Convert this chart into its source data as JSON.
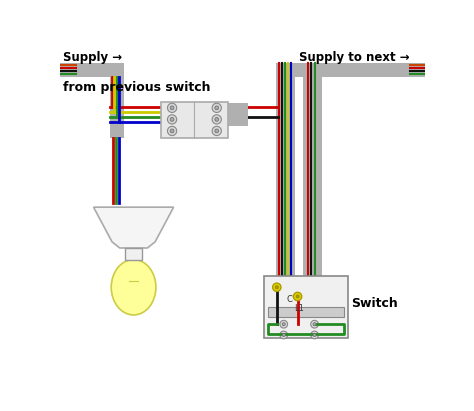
{
  "bg_color": "#ffffff",
  "supply_label": "Supply →",
  "supply_to_next_label": "Supply to next →",
  "from_prev_label": "from previous switch",
  "switch_label": "Switch",
  "cable_gray": "#b0b0b0",
  "wire_red": "#cc0000",
  "wire_black": "#111111",
  "wire_green": "#228B22",
  "wire_yellow_green": "#cccc00",
  "wire_blue": "#0000cc",
  "wire_brown": "#8B4513",
  "bulb_yellow": "#ffff99",
  "bulb_outline": "#cccc44"
}
